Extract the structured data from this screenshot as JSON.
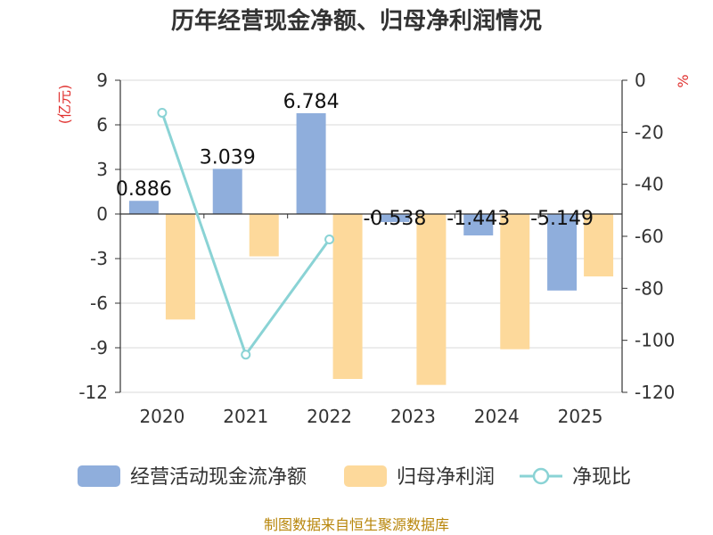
{
  "title": "历年经营现金净额、归母净利润情况",
  "source": "制图数据来自恒生聚源数据库",
  "colors": {
    "cash": "#8FAEDC",
    "profit": "#FDD99B",
    "ratio": "#8AD3D5",
    "unit": "#E0312F",
    "source": "#B8860B"
  },
  "chart_data": {
    "type": "bar",
    "title": "历年经营现金净额、归母净利润情况",
    "categories": [
      "2020",
      "2021",
      "2022",
      "2023",
      "2024",
      "2025"
    ],
    "left_axis": {
      "unit": "(亿元)",
      "ylim": [
        -12,
        9
      ],
      "ticks": [
        "9",
        "6",
        "3",
        "0",
        "-3",
        "-6",
        "-9",
        "-12"
      ],
      "tick_values": [
        9,
        6,
        3,
        0,
        -3,
        -6,
        -9,
        -12
      ]
    },
    "right_axis": {
      "unit": "%",
      "ylim": [
        -120,
        0
      ],
      "ticks": [
        "0",
        "-20",
        "-40",
        "-60",
        "-80",
        "-100",
        "-120"
      ],
      "tick_values": [
        0,
        -20,
        -40,
        -60,
        -80,
        -100,
        -120
      ]
    },
    "grid": true,
    "legend_position": "bottom",
    "series": [
      {
        "name": "经营活动现金流净额",
        "type": "bar",
        "axis": "left",
        "values": [
          0.886,
          3.039,
          6.784,
          -0.538,
          -1.443,
          -5.149
        ],
        "labels": [
          "0.886",
          "3.039",
          "6.784",
          "-0.538",
          "-1.443",
          "-5.149"
        ]
      },
      {
        "name": "归母净利润",
        "type": "bar",
        "axis": "left",
        "values": [
          -7.1,
          -2.85,
          -11.1,
          -11.5,
          -9.1,
          -4.2
        ]
      },
      {
        "name": "净现比",
        "type": "line",
        "axis": "right",
        "values": [
          -12.5,
          -105.5,
          -61.2,
          null,
          null,
          null
        ]
      }
    ]
  }
}
